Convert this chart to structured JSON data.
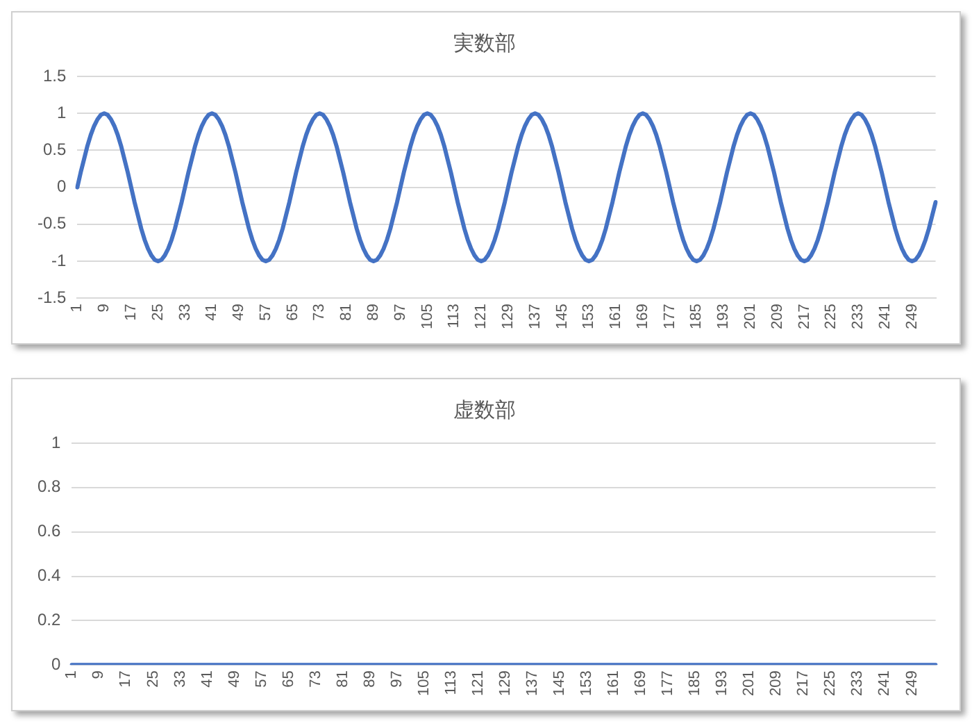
{
  "chart_data": [
    {
      "type": "line",
      "title": "実数部",
      "grid": "y",
      "legend": false,
      "marker": "none",
      "line_style": "solid",
      "ylim": [
        -1.5,
        1.5
      ],
      "yticks": [
        -1.5,
        -1,
        -0.5,
        0,
        0.5,
        1,
        1.5
      ],
      "categories": [
        "1",
        null,
        null,
        null,
        null,
        null,
        null,
        null,
        "9",
        null,
        null,
        null,
        null,
        null,
        null,
        null,
        "17",
        null,
        null,
        null,
        null,
        null,
        null,
        null,
        "25",
        null,
        null,
        null,
        null,
        null,
        null,
        null,
        "33",
        null,
        null,
        null,
        null,
        null,
        null,
        null,
        "41",
        null,
        null,
        null,
        null,
        null,
        null,
        null,
        "49",
        null,
        null,
        null,
        null,
        null,
        null,
        null,
        "57",
        null,
        null,
        null,
        null,
        null,
        null,
        null,
        "65",
        null,
        null,
        null,
        null,
        null,
        null,
        null,
        "73",
        null,
        null,
        null,
        null,
        null,
        null,
        null,
        "81",
        null,
        null,
        null,
        null,
        null,
        null,
        null,
        "89",
        null,
        null,
        null,
        null,
        null,
        null,
        null,
        "97",
        null,
        null,
        null,
        null,
        null,
        null,
        null,
        "105",
        null,
        null,
        null,
        null,
        null,
        null,
        null,
        "113",
        null,
        null,
        null,
        null,
        null,
        null,
        null,
        "121",
        null,
        null,
        null,
        null,
        null,
        null,
        null,
        "129",
        null,
        null,
        null,
        null,
        null,
        null,
        null,
        "137",
        null,
        null,
        null,
        null,
        null,
        null,
        null,
        "145",
        null,
        null,
        null,
        null,
        null,
        null,
        null,
        "153",
        null,
        null,
        null,
        null,
        null,
        null,
        null,
        "161",
        null,
        null,
        null,
        null,
        null,
        null,
        null,
        "169",
        null,
        null,
        null,
        null,
        null,
        null,
        null,
        "177",
        null,
        null,
        null,
        null,
        null,
        null,
        null,
        "185",
        null,
        null,
        null,
        null,
        null,
        null,
        null,
        "193",
        null,
        null,
        null,
        null,
        null,
        null,
        null,
        "201",
        null,
        null,
        null,
        null,
        null,
        null,
        null,
        "209",
        null,
        null,
        null,
        null,
        null,
        null,
        null,
        "217",
        null,
        null,
        null,
        null,
        null,
        null,
        null,
        "225",
        null,
        null,
        null,
        null,
        null,
        null,
        null,
        "233",
        null,
        null,
        null,
        null,
        null,
        null,
        null,
        "241",
        null,
        null,
        null,
        null,
        null,
        null,
        null,
        "249",
        null,
        null,
        null,
        null,
        null,
        null,
        null
      ],
      "series": [
        {
          "color": "#4472c4",
          "values": [
            0,
            0.2,
            0.38,
            0.56,
            0.71,
            0.83,
            0.92,
            0.98,
            1,
            0.98,
            0.92,
            0.83,
            0.71,
            0.56,
            0.38,
            0.2,
            0,
            -0.2,
            -0.38,
            -0.56,
            -0.71,
            -0.83,
            -0.92,
            -0.98,
            -1,
            -0.98,
            -0.92,
            -0.83,
            -0.71,
            -0.56,
            -0.38,
            -0.2,
            0,
            0.2,
            0.38,
            0.56,
            0.71,
            0.83,
            0.92,
            0.98,
            1,
            0.98,
            0.92,
            0.83,
            0.71,
            0.56,
            0.38,
            0.2,
            0,
            -0.2,
            -0.38,
            -0.56,
            -0.71,
            -0.83,
            -0.92,
            -0.98,
            -1,
            -0.98,
            -0.92,
            -0.83,
            -0.71,
            -0.56,
            -0.38,
            -0.2,
            0,
            0.2,
            0.38,
            0.56,
            0.71,
            0.83,
            0.92,
            0.98,
            1,
            0.98,
            0.92,
            0.83,
            0.71,
            0.56,
            0.38,
            0.2,
            0,
            -0.2,
            -0.38,
            -0.56,
            -0.71,
            -0.83,
            -0.92,
            -0.98,
            -1,
            -0.98,
            -0.92,
            -0.83,
            -0.71,
            -0.56,
            -0.38,
            -0.2,
            0,
            0.2,
            0.38,
            0.56,
            0.71,
            0.83,
            0.92,
            0.98,
            1,
            0.98,
            0.92,
            0.83,
            0.71,
            0.56,
            0.38,
            0.2,
            0,
            -0.2,
            -0.38,
            -0.56,
            -0.71,
            -0.83,
            -0.92,
            -0.98,
            -1,
            -0.98,
            -0.92,
            -0.83,
            -0.71,
            -0.56,
            -0.38,
            -0.2,
            0,
            0.2,
            0.38,
            0.56,
            0.71,
            0.83,
            0.92,
            0.98,
            1,
            0.98,
            0.92,
            0.83,
            0.71,
            0.56,
            0.38,
            0.2,
            0,
            -0.2,
            -0.38,
            -0.56,
            -0.71,
            -0.83,
            -0.92,
            -0.98,
            -1,
            -0.98,
            -0.92,
            -0.83,
            -0.71,
            -0.56,
            -0.38,
            -0.2,
            0,
            0.2,
            0.38,
            0.56,
            0.71,
            0.83,
            0.92,
            0.98,
            1,
            0.98,
            0.92,
            0.83,
            0.71,
            0.56,
            0.38,
            0.2,
            0,
            -0.2,
            -0.38,
            -0.56,
            -0.71,
            -0.83,
            -0.92,
            -0.98,
            -1,
            -0.98,
            -0.92,
            -0.83,
            -0.71,
            -0.56,
            -0.38,
            -0.2,
            0,
            0.2,
            0.38,
            0.56,
            0.71,
            0.83,
            0.92,
            0.98,
            1,
            0.98,
            0.92,
            0.83,
            0.71,
            0.56,
            0.38,
            0.2,
            0,
            -0.2,
            -0.38,
            -0.56,
            -0.71,
            -0.83,
            -0.92,
            -0.98,
            -1,
            -0.98,
            -0.92,
            -0.83,
            -0.71,
            -0.56,
            -0.38,
            -0.2,
            0,
            0.2,
            0.38,
            0.56,
            0.71,
            0.83,
            0.92,
            0.98,
            1,
            0.98,
            0.92,
            0.83,
            0.71,
            0.56,
            0.38,
            0.2,
            0,
            -0.2,
            -0.38,
            -0.56,
            -0.71,
            -0.83,
            -0.92,
            -0.98,
            -1,
            -0.98,
            -0.92,
            -0.83,
            -0.71,
            -0.56,
            -0.38,
            -0.2
          ]
        }
      ]
    },
    {
      "type": "line",
      "title": "虚数部",
      "grid": "y",
      "legend": false,
      "marker": "none",
      "line_style": "solid",
      "ylim": [
        0,
        1
      ],
      "yticks": [
        0,
        0.2,
        0.4,
        0.6,
        0.8,
        1
      ],
      "categories": [
        "1",
        null,
        null,
        null,
        null,
        null,
        null,
        null,
        "9",
        null,
        null,
        null,
        null,
        null,
        null,
        null,
        "17",
        null,
        null,
        null,
        null,
        null,
        null,
        null,
        "25",
        null,
        null,
        null,
        null,
        null,
        null,
        null,
        "33",
        null,
        null,
        null,
        null,
        null,
        null,
        null,
        "41",
        null,
        null,
        null,
        null,
        null,
        null,
        null,
        "49",
        null,
        null,
        null,
        null,
        null,
        null,
        null,
        "57",
        null,
        null,
        null,
        null,
        null,
        null,
        null,
        "65",
        null,
        null,
        null,
        null,
        null,
        null,
        null,
        "73",
        null,
        null,
        null,
        null,
        null,
        null,
        null,
        "81",
        null,
        null,
        null,
        null,
        null,
        null,
        null,
        "89",
        null,
        null,
        null,
        null,
        null,
        null,
        null,
        "97",
        null,
        null,
        null,
        null,
        null,
        null,
        null,
        "105",
        null,
        null,
        null,
        null,
        null,
        null,
        null,
        "113",
        null,
        null,
        null,
        null,
        null,
        null,
        null,
        "121",
        null,
        null,
        null,
        null,
        null,
        null,
        null,
        "129",
        null,
        null,
        null,
        null,
        null,
        null,
        null,
        "137",
        null,
        null,
        null,
        null,
        null,
        null,
        null,
        "145",
        null,
        null,
        null,
        null,
        null,
        null,
        null,
        "153",
        null,
        null,
        null,
        null,
        null,
        null,
        null,
        "161",
        null,
        null,
        null,
        null,
        null,
        null,
        null,
        "169",
        null,
        null,
        null,
        null,
        null,
        null,
        null,
        "177",
        null,
        null,
        null,
        null,
        null,
        null,
        null,
        "185",
        null,
        null,
        null,
        null,
        null,
        null,
        null,
        "193",
        null,
        null,
        null,
        null,
        null,
        null,
        null,
        "201",
        null,
        null,
        null,
        null,
        null,
        null,
        null,
        "209",
        null,
        null,
        null,
        null,
        null,
        null,
        null,
        "217",
        null,
        null,
        null,
        null,
        null,
        null,
        null,
        "225",
        null,
        null,
        null,
        null,
        null,
        null,
        null,
        "233",
        null,
        null,
        null,
        null,
        null,
        null,
        null,
        "241",
        null,
        null,
        null,
        null,
        null,
        null,
        null,
        "249",
        null,
        null,
        null,
        null,
        null,
        null,
        null
      ],
      "series": [
        {
          "color": "#4472c4",
          "values": [
            0,
            0,
            0,
            0,
            0,
            0,
            0,
            0,
            0,
            0,
            0,
            0,
            0,
            0,
            0,
            0,
            0,
            0,
            0,
            0,
            0,
            0,
            0,
            0,
            0,
            0,
            0,
            0,
            0,
            0,
            0,
            0,
            0,
            0,
            0,
            0,
            0,
            0,
            0,
            0,
            0,
            0,
            0,
            0,
            0,
            0,
            0,
            0,
            0,
            0,
            0,
            0,
            0,
            0,
            0,
            0,
            0,
            0,
            0,
            0,
            0,
            0,
            0,
            0,
            0,
            0,
            0,
            0,
            0,
            0,
            0,
            0,
            0,
            0,
            0,
            0,
            0,
            0,
            0,
            0,
            0,
            0,
            0,
            0,
            0,
            0,
            0,
            0,
            0,
            0,
            0,
            0,
            0,
            0,
            0,
            0,
            0,
            0,
            0,
            0,
            0,
            0,
            0,
            0,
            0,
            0,
            0,
            0,
            0,
            0,
            0,
            0,
            0,
            0,
            0,
            0,
            0,
            0,
            0,
            0,
            0,
            0,
            0,
            0,
            0,
            0,
            0,
            0,
            0,
            0,
            0,
            0,
            0,
            0,
            0,
            0,
            0,
            0,
            0,
            0,
            0,
            0,
            0,
            0,
            0,
            0,
            0,
            0,
            0,
            0,
            0,
            0,
            0,
            0,
            0,
            0,
            0,
            0,
            0,
            0,
            0,
            0,
            0,
            0,
            0,
            0,
            0,
            0,
            0,
            0,
            0,
            0,
            0,
            0,
            0,
            0,
            0,
            0,
            0,
            0,
            0,
            0,
            0,
            0,
            0,
            0,
            0,
            0,
            0,
            0,
            0,
            0,
            0,
            0,
            0,
            0,
            0,
            0,
            0,
            0,
            0,
            0,
            0,
            0,
            0,
            0,
            0,
            0,
            0,
            0,
            0,
            0,
            0,
            0,
            0,
            0,
            0,
            0,
            0,
            0,
            0,
            0,
            0,
            0,
            0,
            0,
            0,
            0,
            0,
            0,
            0,
            0,
            0,
            0,
            0,
            0,
            0,
            0,
            0,
            0,
            0,
            0,
            0,
            0,
            0,
            0,
            0,
            0,
            0,
            0,
            0,
            0,
            0,
            0,
            0,
            0
          ]
        }
      ]
    }
  ]
}
